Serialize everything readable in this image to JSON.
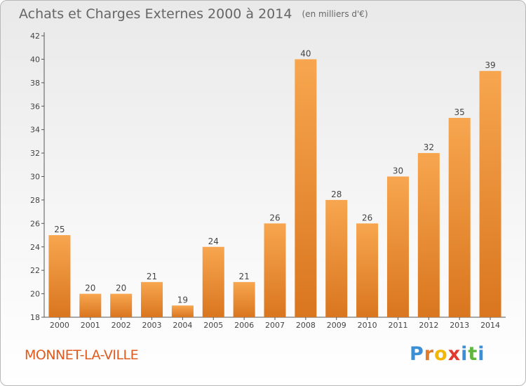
{
  "header": {
    "title": "Achats et Charges Externes 2000 à 2014",
    "subtitle": "(en milliers d'€)"
  },
  "footer": {
    "commune": "MONNET-LA-VILLE",
    "logo_letters": [
      "P",
      "r",
      "o",
      "x",
      "i",
      "t",
      "i"
    ],
    "logo_colors": [
      "#3a8fd6",
      "#e07b2a",
      "#f2b705",
      "#e03a2e",
      "#3a8fd6",
      "#5fb53d",
      "#3a8fd6"
    ]
  },
  "chart_data": {
    "type": "bar",
    "categories": [
      "2000",
      "2001",
      "2002",
      "2003",
      "2004",
      "2005",
      "2006",
      "2007",
      "2008",
      "2009",
      "2010",
      "2011",
      "2012",
      "2013",
      "2014"
    ],
    "values": [
      25,
      20,
      20,
      21,
      19,
      24,
      21,
      26,
      40,
      28,
      26,
      30,
      32,
      35,
      39
    ],
    "ylim": [
      18,
      42
    ],
    "yticks": [
      18,
      20,
      22,
      24,
      26,
      28,
      30,
      32,
      34,
      36,
      38,
      40,
      42
    ],
    "grid": false,
    "bar_color_top": "#f7a64f",
    "bar_color_bottom": "#d9761f"
  }
}
